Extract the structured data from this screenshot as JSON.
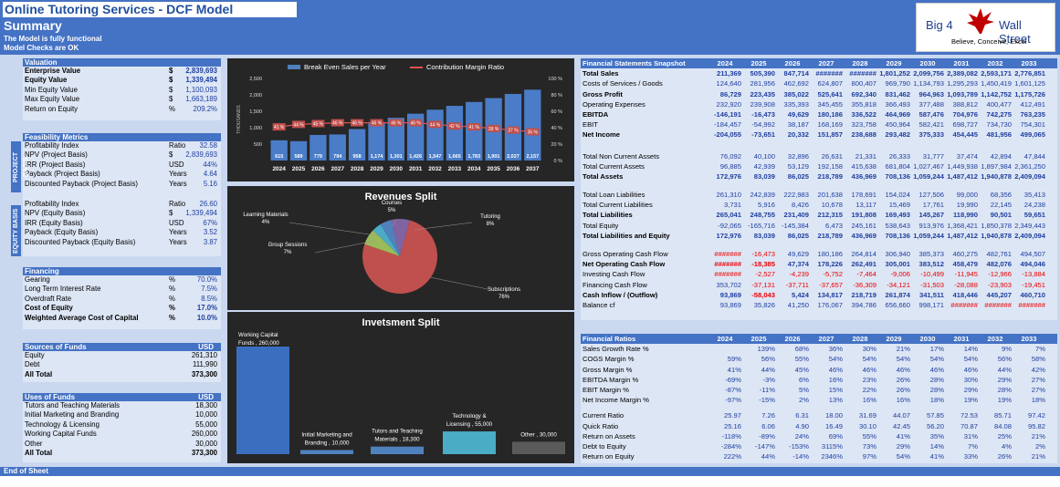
{
  "header": {
    "title": "Online Tutoring Services - DCF Model",
    "subtitle": "Summary",
    "note1": "The Model is fully functional",
    "note2": "Model Checks are OK"
  },
  "logo": {
    "left": "Big 4",
    "right": "Wall Street",
    "tagline": "Believe, Conceive, Excel"
  },
  "footer": "End of Sheet",
  "valuation": {
    "title": "Valuation",
    "rows": [
      {
        "label": "Enterprise Value",
        "unit": "$",
        "value": "2,839,693",
        "bold": true
      },
      {
        "label": "Equity Value",
        "unit": "$",
        "value": "1,339,494",
        "bold": true
      },
      {
        "label": "Min Equity Value",
        "unit": "$",
        "value": "1,100,093"
      },
      {
        "label": "Max Equity Value",
        "unit": "$",
        "value": "1,663,189"
      },
      {
        "label": "Return on Equity",
        "unit": "%",
        "value": "209.2%"
      }
    ]
  },
  "feasibility": {
    "title": "Feasibility Metrics",
    "project_label": "PROJECT BASIS",
    "equity_label": "EQUITY BASIS",
    "project": [
      {
        "label": "Profitability Index",
        "unit": "Ratio",
        "value": "32.58"
      },
      {
        "label": "NPV (Project Basis)",
        "unit": "$",
        "value": "2,839,693"
      },
      {
        "label": "IRR (Project Basis)",
        "unit": "USD",
        "value": "44%"
      },
      {
        "label": "Payback  (Project Basis)",
        "unit": "Years",
        "value": "4.64"
      },
      {
        "label": "Discounted Payback  (Project Basis)",
        "unit": "Years",
        "value": "5.16"
      }
    ],
    "equity": [
      {
        "label": "Profitability Index",
        "unit": "Ratio",
        "value": "26.60"
      },
      {
        "label": "NPV (Equity Basis)",
        "unit": "$",
        "value": "1,339,494"
      },
      {
        "label": "IRR (Equity Basis)",
        "unit": "USD",
        "value": "67%"
      },
      {
        "label": "Payback  (Equity Basis)",
        "unit": "Years",
        "value": "3.52"
      },
      {
        "label": "Discounted Payback  (Equity Basis)",
        "unit": "Years",
        "value": "3.87"
      }
    ]
  },
  "financing": {
    "title": "Financing",
    "rows": [
      {
        "label": "Gearing",
        "unit": "%",
        "value": "70.0%"
      },
      {
        "label": "Long Term Interest Rate",
        "unit": "%",
        "value": "7.5%"
      },
      {
        "label": "Overdraft Rate",
        "unit": "%",
        "value": "8.5%"
      },
      {
        "label": "Cost of Equity",
        "unit": "%",
        "value": "17.0%",
        "bold": true
      },
      {
        "label": "Weighted Average Cost of Capital",
        "unit": "%",
        "value": "10.0%",
        "bold": true
      }
    ]
  },
  "sources": {
    "title": "Sources of Funds",
    "unit": "USD",
    "rows": [
      {
        "label": "Equity",
        "value": "261,310"
      },
      {
        "label": "Debt",
        "value": "111,990"
      },
      {
        "label": "All Total",
        "value": "373,300",
        "bold": true
      }
    ]
  },
  "uses": {
    "title": "Uses of Funds",
    "unit": "USD",
    "rows": [
      {
        "label": "Tutors and Teaching Materials",
        "value": "18,300"
      },
      {
        "label": "Initial Marketing and Branding",
        "value": "10,000"
      },
      {
        "label": "Technology & Licensing",
        "value": "55,000"
      },
      {
        "label": "Working Capital Funds",
        "value": "260,000"
      },
      {
        "label": "Other",
        "value": "30,000"
      },
      {
        "label": "All Total",
        "value": "373,300",
        "bold": true
      }
    ]
  },
  "chart_data": [
    {
      "type": "bar",
      "legend": [
        "Break Even Sales per Year",
        "Contribution Margin Ratio"
      ],
      "ylabel": "THOUSANDS",
      "categories": [
        "2024",
        "2025",
        "2026",
        "2027",
        "2028",
        "2029",
        "2030",
        "2031",
        "2032",
        "2033",
        "2034",
        "2035",
        "2036",
        "2037"
      ],
      "series": [
        {
          "name": "Break Even Sales per Year",
          "values": [
            615,
            589,
            779,
            794,
            958,
            1174,
            1301,
            1426,
            1547,
            1665,
            1783,
            1901,
            2027,
            2157
          ]
        },
        {
          "name": "Contribution Margin Ratio",
          "values": [
            41,
            44,
            45,
            46,
            46,
            46,
            46,
            46,
            44,
            42,
            41,
            39,
            37,
            35
          ]
        }
      ],
      "ylim": [
        0,
        2500
      ],
      "y2lim": [
        0,
        100
      ],
      "yticks": [
        "500",
        "1,000",
        "1,500",
        "2,000",
        "2,500"
      ],
      "y2ticks": [
        "0 %",
        "20 %",
        "40 %",
        "60 %",
        "80 %",
        "100 %"
      ]
    },
    {
      "type": "pie",
      "title": "Revenues Split",
      "slices": [
        {
          "label": "Courses",
          "value": 5,
          "color": "#4f81bd"
        },
        {
          "label": "Tutoring",
          "value": 8,
          "color": "#8064a2"
        },
        {
          "label": "Subscriptions",
          "value": 76,
          "color": "#c0504d"
        },
        {
          "label": "Group Sessions",
          "value": 7,
          "color": "#9bbb59"
        },
        {
          "label": "Learning Materials",
          "value": 4,
          "color": "#4bacc6"
        }
      ]
    },
    {
      "type": "bar",
      "title": "Invetsment Split",
      "categories": [
        "Working Capital Funds",
        "Initial Marketing and Branding",
        "Tutors and Teaching Materials",
        "Technology & Licensing",
        "Other"
      ],
      "values": [
        260000,
        10000,
        18300,
        55000,
        30000
      ],
      "labels": [
        "Working Capital Funds , 260,000",
        "Initial Marketing and Branding , 10,000",
        "Tutors and Teaching Materials , 18,300",
        "Technology & Licensing , 55,000",
        "Other , 30,000"
      ]
    }
  ],
  "fs": {
    "title": "Financial Statements Snapshot",
    "years": [
      "2024",
      "2025",
      "2026",
      "2027",
      "2028",
      "2029",
      "2030",
      "2031",
      "2032",
      "2033"
    ],
    "groups": [
      [
        {
          "label": "Total Sales",
          "bold": true,
          "vals": [
            "211,369",
            "505,390",
            "847,714",
            "#######",
            "#######",
            "1,801,252",
            "2,099,756",
            "2,389,082",
            "2,593,171",
            "2,776,851"
          ]
        },
        {
          "label": "Costs of Services / Goods",
          "vals": [
            "124,640",
            "281,956",
            "462,692",
            "624,807",
            "800,407",
            "969,790",
            "1,134,793",
            "1,295,293",
            "1,450,419",
            "1,601,125"
          ]
        },
        {
          "label": "Gross Profit",
          "bold": true,
          "vals": [
            "86,729",
            "223,435",
            "385,022",
            "525,641",
            "692,340",
            "831,462",
            "964,963",
            "1,093,789",
            "1,142,752",
            "1,175,726"
          ]
        },
        {
          "label": "Operating Expenses",
          "vals": [
            "232,920",
            "239,908",
            "335,393",
            "345,455",
            "355,818",
            "366,493",
            "377,488",
            "388,812",
            "400,477",
            "412,491"
          ]
        },
        {
          "label": "EBITDA",
          "bold": true,
          "vals": [
            "-146,191",
            "-16,473",
            "49,629",
            "180,186",
            "336,522",
            "464,969",
            "587,476",
            "704,976",
            "742,275",
            "763,235"
          ]
        },
        {
          "label": "EBIT",
          "vals": [
            "-184,457",
            "-54,992",
            "38,187",
            "168,169",
            "323,758",
            "450,964",
            "582,421",
            "698,727",
            "734,730",
            "754,301"
          ]
        },
        {
          "label": "Net Income",
          "bold": true,
          "vals": [
            "-204,055",
            "-73,651",
            "20,332",
            "151,857",
            "238,688",
            "293,482",
            "375,333",
            "454,445",
            "481,956",
            "499,065"
          ]
        }
      ],
      [
        {
          "label": "Total Non Current Assets",
          "vals": [
            "76,092",
            "40,100",
            "32,896",
            "26,631",
            "21,331",
            "26,333",
            "31,777",
            "37,474",
            "42,894",
            "47,844"
          ]
        },
        {
          "label": "Total Current Assets",
          "vals": [
            "96,885",
            "42,939",
            "53,129",
            "192,158",
            "415,638",
            "681,804",
            "1,027,467",
            "1,449,938",
            "1,897,984",
            "2,361,250"
          ]
        },
        {
          "label": "Total Assets",
          "bold": true,
          "vals": [
            "172,976",
            "83,039",
            "86,025",
            "218,789",
            "436,969",
            "708,136",
            "1,059,244",
            "1,487,412",
            "1,940,878",
            "2,409,094"
          ]
        }
      ],
      [
        {
          "label": "Total Loan Liabilities",
          "vals": [
            "261,310",
            "242,839",
            "222,983",
            "201,638",
            "178,691",
            "154,024",
            "127,506",
            "99,000",
            "68,356",
            "35,413"
          ]
        },
        {
          "label": "Total Current Liabilities",
          "vals": [
            "3,731",
            "5,916",
            "8,426",
            "10,678",
            "13,117",
            "15,469",
            "17,761",
            "19,990",
            "22,145",
            "24,238"
          ]
        },
        {
          "label": "Total Liabilities",
          "bold": true,
          "vals": [
            "265,041",
            "248,755",
            "231,409",
            "212,315",
            "191,808",
            "169,493",
            "145,267",
            "118,990",
            "90,501",
            "59,651"
          ]
        },
        {
          "label": "Total Equity",
          "vals": [
            "-92,065",
            "-165,716",
            "-145,384",
            "6,473",
            "245,161",
            "538,643",
            "913,976",
            "1,368,421",
            "1,850,378",
            "2,349,443"
          ]
        },
        {
          "label": "Total Liabilities and Equity",
          "bold": true,
          "vals": [
            "172,976",
            "83,039",
            "86,025",
            "218,789",
            "436,969",
            "708,136",
            "1,059,244",
            "1,487,412",
            "1,940,878",
            "2,409,094"
          ]
        }
      ],
      [
        {
          "label": "Gross Operating Cash Flow",
          "vals": [
            "#######",
            "-16,473",
            "49,629",
            "180,186",
            "264,814",
            "306,940",
            "385,373",
            "460,275",
            "482,761",
            "494,507"
          ]
        },
        {
          "label": "Net Operating Cash Flow",
          "bold": true,
          "vals": [
            "#######",
            "-18,385",
            "47,374",
            "178,226",
            "262,491",
            "305,001",
            "383,512",
            "458,479",
            "482,076",
            "494,046"
          ]
        },
        {
          "label": "Investing Cash Flow",
          "vals": [
            "#######",
            "-2,527",
            "-4,239",
            "-5,752",
            "-7,464",
            "-9,006",
            "-10,499",
            "-11,945",
            "-12,966",
            "-13,884"
          ]
        },
        {
          "label": "Financing Cash Flow",
          "vals": [
            "353,702",
            "-37,131",
            "-37,711",
            "-37,657",
            "-36,309",
            "-34,121",
            "-31,503",
            "-28,088",
            "-23,903",
            "-19,451"
          ]
        },
        {
          "label": "Cash Inflow / (Outflow)",
          "bold": true,
          "vals": [
            "93,869",
            "-58,043",
            "5,424",
            "134,817",
            "218,719",
            "261,874",
            "341,511",
            "418,446",
            "445,207",
            "460,710"
          ]
        },
        {
          "label": "Balance cf",
          "vals": [
            "93,869",
            "35,826",
            "41,250",
            "176,067",
            "394,786",
            "656,660",
            "998,171",
            "#######",
            "#######",
            "#######"
          ]
        }
      ]
    ]
  },
  "ratios": {
    "title": "Financial Ratios",
    "years": [
      "2024",
      "2025",
      "2026",
      "2027",
      "2028",
      "2029",
      "2030",
      "2031",
      "2032",
      "2033"
    ],
    "groups": [
      [
        {
          "label": "Sales Growth Rate %",
          "vals": [
            "",
            "139%",
            "68%",
            "36%",
            "30%",
            "21%",
            "17%",
            "14%",
            "9%",
            "7%"
          ]
        },
        {
          "label": "COGS Margin %",
          "vals": [
            "59%",
            "56%",
            "55%",
            "54%",
            "54%",
            "54%",
            "54%",
            "54%",
            "56%",
            "58%"
          ]
        },
        {
          "label": "Gross Margin %",
          "vals": [
            "41%",
            "44%",
            "45%",
            "46%",
            "46%",
            "46%",
            "46%",
            "46%",
            "44%",
            "42%"
          ]
        },
        {
          "label": "EBITDA Margin %",
          "vals": [
            "-69%",
            "-3%",
            "6%",
            "16%",
            "23%",
            "26%",
            "28%",
            "30%",
            "29%",
            "27%"
          ]
        },
        {
          "label": "EBIT Margin %",
          "vals": [
            "-87%",
            "-11%",
            "5%",
            "15%",
            "22%",
            "26%",
            "28%",
            "29%",
            "28%",
            "27%"
          ]
        },
        {
          "label": "Net Income Margin %",
          "vals": [
            "-97%",
            "-15%",
            "2%",
            "13%",
            "16%",
            "16%",
            "18%",
            "19%",
            "19%",
            "18%"
          ]
        }
      ],
      [
        {
          "label": "Current Ratio",
          "vals": [
            "25.97",
            "7.26",
            "6.31",
            "18.00",
            "31.69",
            "44.07",
            "57.85",
            "72.53",
            "85.71",
            "97.42"
          ]
        },
        {
          "label": "Quick Ratio",
          "vals": [
            "25.16",
            "6.06",
            "4.90",
            "16.49",
            "30.10",
            "42.45",
            "56.20",
            "70.87",
            "84.08",
            "95.82"
          ]
        },
        {
          "label": "Return on Assets",
          "vals": [
            "-118%",
            "-89%",
            "24%",
            "69%",
            "55%",
            "41%",
            "35%",
            "31%",
            "25%",
            "21%"
          ]
        },
        {
          "label": "Debt to Equity",
          "vals": [
            "-284%",
            "-147%",
            "-153%",
            "3115%",
            "73%",
            "29%",
            "14%",
            "7%",
            "4%",
            "2%"
          ]
        },
        {
          "label": "Return on Equity",
          "vals": [
            "222%",
            "44%",
            "-14%",
            "2346%",
            "97%",
            "54%",
            "41%",
            "33%",
            "26%",
            "21%"
          ]
        }
      ]
    ]
  }
}
